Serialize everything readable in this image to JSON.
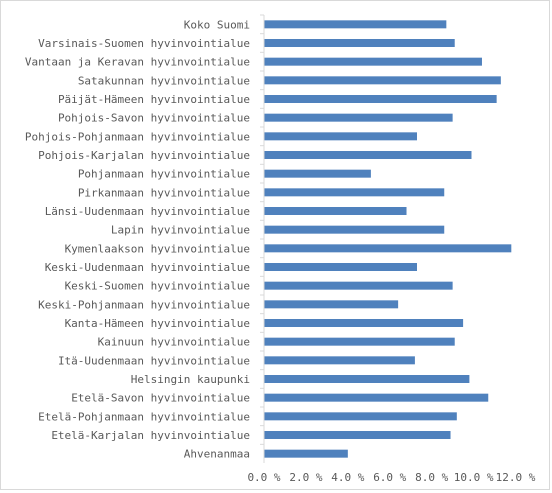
{
  "chart_data": {
    "type": "bar",
    "orientation": "horizontal",
    "categories": [
      "Koko Suomi",
      "Varsinais-Suomen hyvinvointialue",
      "Vantaan ja Keravan hyvinvointialue",
      "Satakunnan hyvinvointialue",
      "Päijät-Hämeen hyvinvointialue",
      "Pohjois-Savon hyvinvointialue",
      "Pohjois-Pohjanmaan hyvinvointialue",
      "Pohjois-Karjalan hyvinvointialue",
      "Pohjanmaan hyvinvointialue",
      "Pirkanmaan hyvinvointialue",
      "Länsi-Uudenmaan hyvinvointialue",
      "Lapin hyvinvointialue",
      "Kymenlaakson hyvinvointialue",
      "Keski-Uudenmaan hyvinvointialue",
      "Keski-Suomen hyvinvointialue",
      "Keski-Pohjanmaan hyvinvointialue",
      "Kanta-Hämeen hyvinvointialue",
      "Kainuun hyvinvointialue",
      "Itä-Uudenmaan hyvinvointialue",
      "Helsingin kaupunki",
      "Etelä-Savon hyvinvointialue",
      "Etelä-Pohjanmaan hyvinvointialue",
      "Etelä-Karjalan hyvinvointialue",
      "Ahvenanmaa"
    ],
    "values": [
      8.7,
      9.1,
      10.4,
      11.3,
      11.1,
      9.0,
      7.3,
      9.9,
      5.1,
      8.6,
      6.8,
      8.6,
      11.8,
      7.3,
      9.0,
      6.4,
      9.5,
      9.1,
      7.2,
      9.8,
      10.7,
      9.2,
      8.9,
      4.0
    ],
    "xticks": [
      "0.0 %",
      "2.0 %",
      "4.0 %",
      "6.0 %",
      "8.0 %",
      "10.0 %",
      "12.0 %"
    ],
    "xlim": [
      0,
      13
    ],
    "title": "",
    "xlabel": "",
    "ylabel": "",
    "grid": false,
    "bar_color": "#4f81bd"
  }
}
